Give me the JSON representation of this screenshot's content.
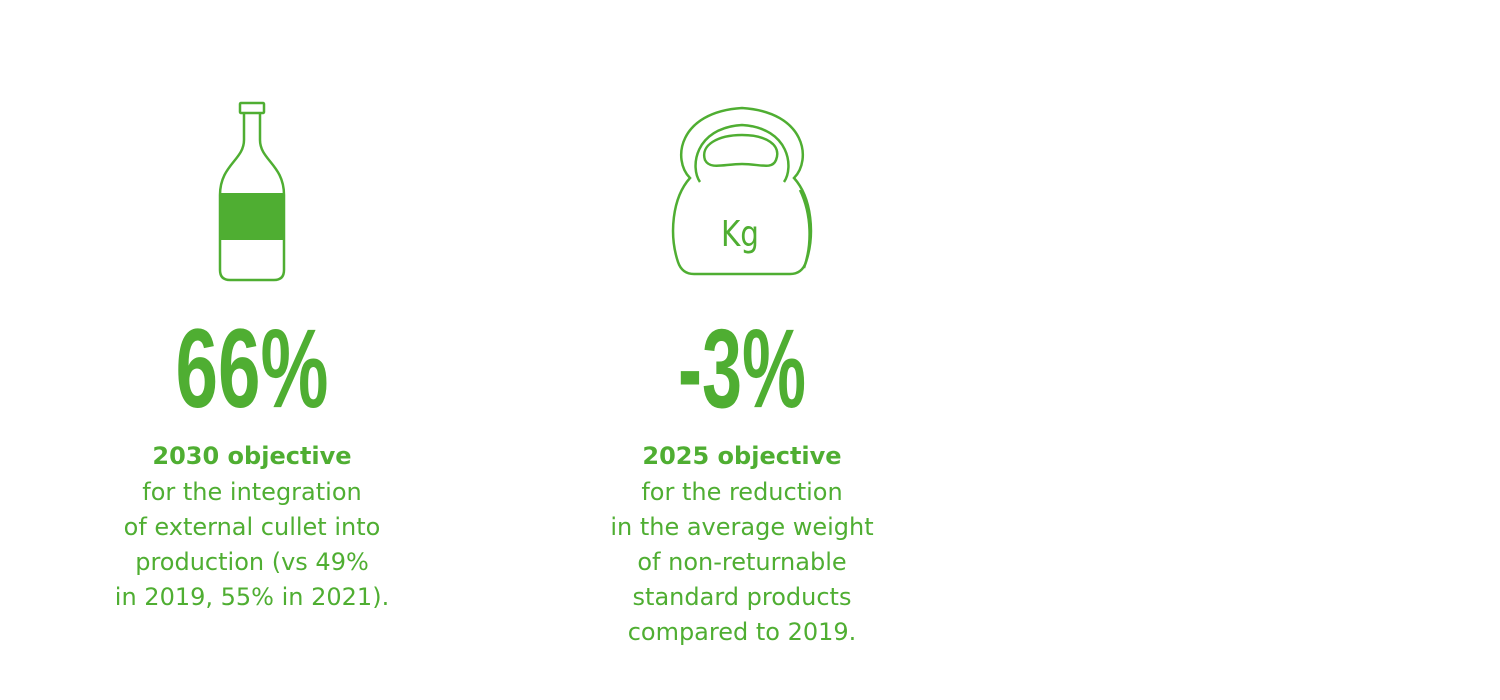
{
  "stats": [
    {
      "value": "66%",
      "heading": "2030 objective",
      "lines": [
        "for the integration",
        "of external cullet into",
        "production (vs 49%",
        "in 2019, 55% in 2021)."
      ]
    },
    {
      "icon_label": "Kg",
      "value": "-3%",
      "heading": "2025 objective",
      "lines": [
        "for the reduction",
        "in the average weight",
        "of non-returnable",
        "standard products",
        "compared to 2019."
      ]
    }
  ]
}
